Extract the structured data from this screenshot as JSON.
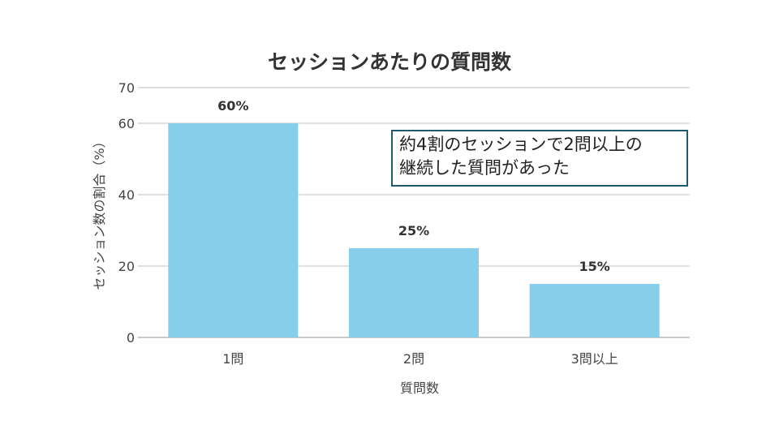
{
  "chart_data": {
    "type": "bar",
    "title": "セッションあたりの質問数",
    "xlabel": "質問数",
    "ylabel": "セッション数の割合（%）",
    "categories": [
      "1問",
      "2問",
      "3問以上"
    ],
    "values": [
      60,
      25,
      15
    ],
    "data_labels": [
      "60%",
      "25%",
      "15%"
    ],
    "ylim": [
      0,
      70
    ],
    "yticks": [
      0,
      20,
      40,
      60,
      70
    ],
    "grid": true,
    "bar_color": "#87ceeb",
    "annotation": "約4割のセッションで2問以上の\n継続した質問があった",
    "annotation_border_color": "#1f5a6e"
  }
}
